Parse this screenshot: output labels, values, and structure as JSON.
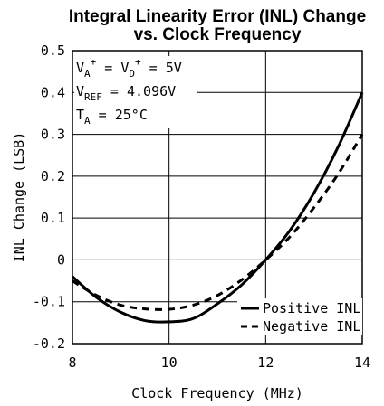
{
  "chart_data": {
    "type": "line",
    "title": "Integral Linearity Error (INL) Change",
    "subtitle": "vs. Clock Frequency",
    "xlabel": "Clock Frequency (MHz)",
    "ylabel": "INL Change (LSB)",
    "xlim": [
      8,
      14
    ],
    "ylim": [
      -0.2,
      0.5
    ],
    "xticks": [
      "8",
      "10",
      "12",
      "14"
    ],
    "yticks": [
      "-0.2",
      "-0.1",
      "0",
      "0.1",
      "0.2",
      "0.3",
      "0.4",
      "0.5"
    ],
    "grid": true,
    "annotations": {
      "line1": {
        "a": "V",
        "sub1": "A",
        "sup1": "+",
        "b": " = V",
        "sub2": "D",
        "sup2": "+",
        "c": " = 5V"
      },
      "line2": {
        "a": "V",
        "sub": "REF",
        "b": " = 4.096V"
      },
      "line3": {
        "a": "T",
        "sub": "A",
        "b": " = 25°C"
      }
    },
    "series": [
      {
        "name": "Positive INL",
        "style": "solid",
        "x": [
          8.0,
          8.5,
          9.0,
          9.5,
          10.0,
          10.5,
          11.0,
          11.5,
          12.0,
          12.5,
          13.0,
          13.5,
          14.0
        ],
        "y": [
          -0.04,
          -0.09,
          -0.125,
          -0.145,
          -0.148,
          -0.14,
          -0.105,
          -0.06,
          0.0,
          0.07,
          0.16,
          0.27,
          0.4
        ]
      },
      {
        "name": "Negative INL",
        "style": "dashed",
        "x": [
          8.0,
          8.5,
          9.0,
          9.5,
          10.0,
          10.5,
          11.0,
          11.5,
          12.0,
          12.5,
          13.0,
          13.5,
          14.0
        ],
        "y": [
          -0.05,
          -0.085,
          -0.108,
          -0.117,
          -0.118,
          -0.108,
          -0.085,
          -0.048,
          0.0,
          0.055,
          0.125,
          0.205,
          0.3
        ]
      }
    ],
    "legend": {
      "position": "bottom-right"
    }
  }
}
